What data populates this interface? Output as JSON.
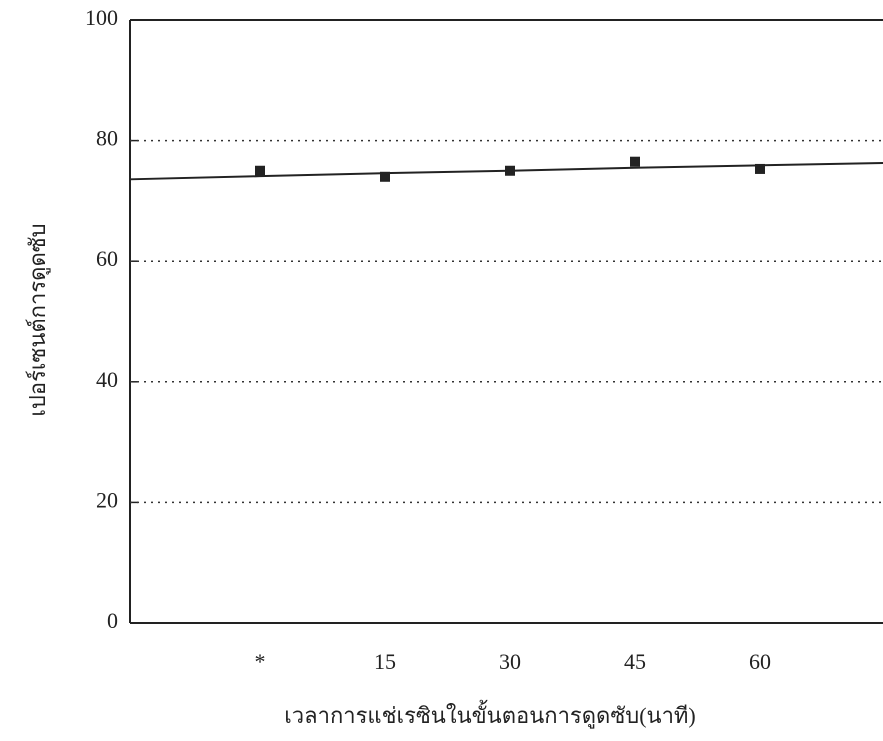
{
  "chart_data": {
    "type": "scatter",
    "x_label": "เวลาการแช่เรซินในขั้นตอนการดูดซับ(นาที)",
    "y_label": "เปอร์เซนต์การดูดซับ",
    "categories": [
      "*",
      "15",
      "30",
      "45",
      "60"
    ],
    "series": [
      {
        "values": [
          75,
          74,
          75,
          76.5,
          75.3
        ],
        "color": "#222222",
        "marker": "square"
      },
      {
        "values": [
          74.1,
          74.6,
          75.0,
          75.5,
          75.9
        ],
        "color": "#222222",
        "marker": "line"
      }
    ],
    "ylim": [
      0,
      100
    ],
    "yticks": [
      0,
      20,
      40,
      60,
      80,
      100
    ],
    "grid": true
  }
}
